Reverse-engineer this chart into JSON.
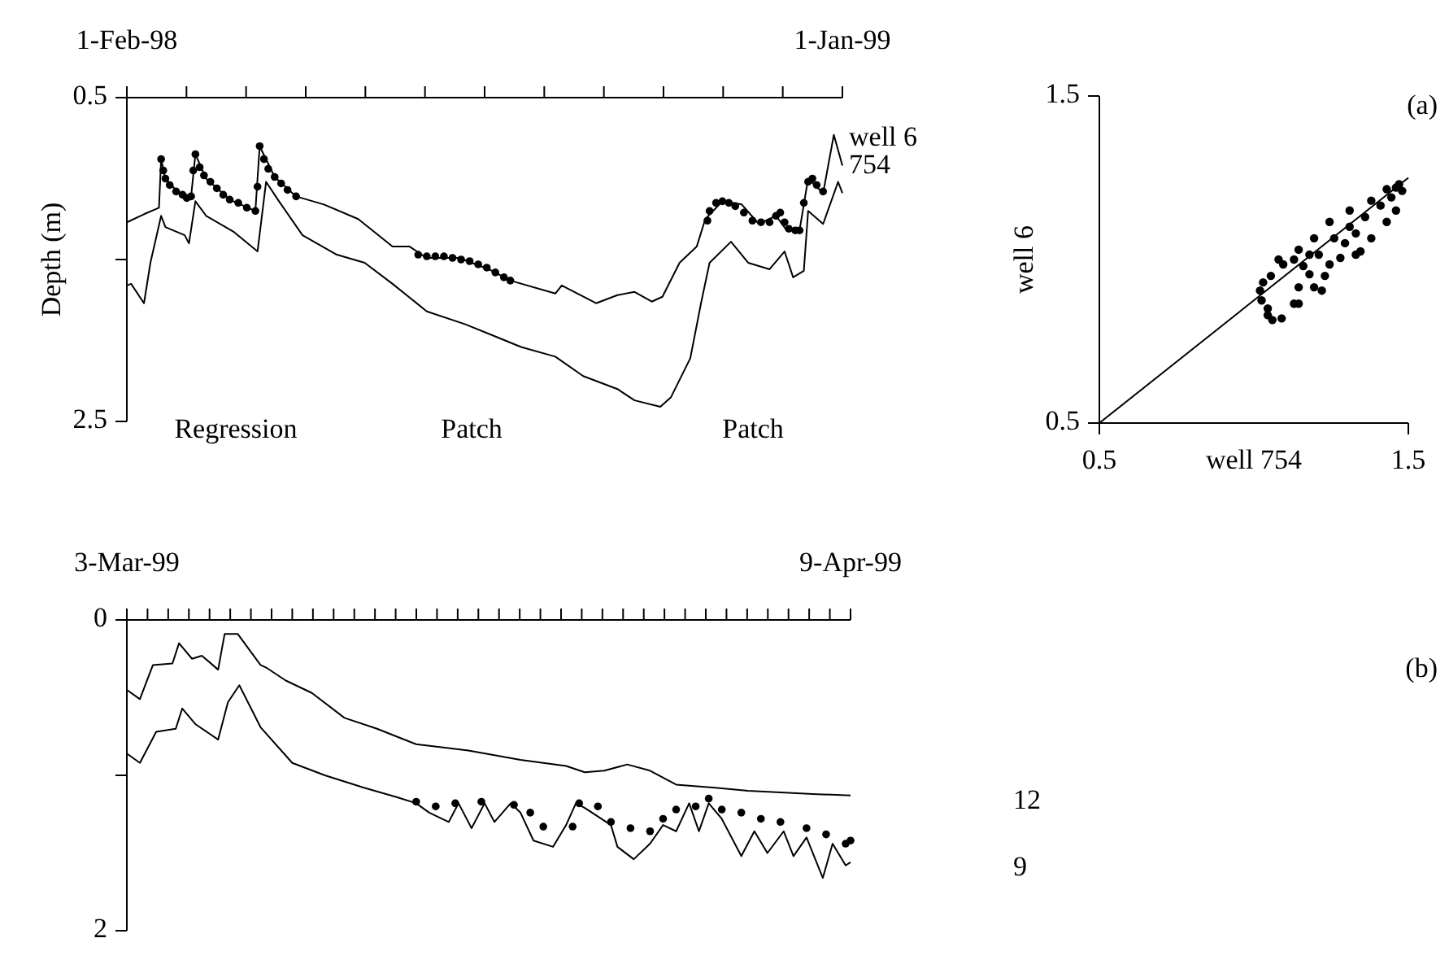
{
  "chart_data": [
    {
      "type": "line",
      "ylabel": "Depth (m)",
      "xlim": [
        "1998-02-01",
        "1999-01-01"
      ],
      "ylim": [
        2.5,
        0.5
      ],
      "xticks": [
        {
          "value": "1998-02-01",
          "label": "1-Feb-98"
        },
        {
          "value": "1998-02-28T20:00",
          "label": null
        },
        {
          "value": "1998-03-28T16:00",
          "label": null
        },
        {
          "value": "1998-04-25T12:00",
          "label": null
        },
        {
          "value": "1998-05-23T08:00",
          "label": null
        },
        {
          "value": "1998-06-20T04:00",
          "label": null
        },
        {
          "value": "1998-07-18",
          "label": null
        },
        {
          "value": "1998-08-14T20:00",
          "label": null
        },
        {
          "value": "1998-09-11T16:00",
          "label": null
        },
        {
          "value": "1998-10-09T12:00",
          "label": null
        },
        {
          "value": "1998-11-06T08:00",
          "label": null
        },
        {
          "value": "1998-12-04T04:00",
          "label": null
        },
        {
          "value": "1999-01-01",
          "label": "1-Jan-99"
        }
      ],
      "yticks": [
        0.5,
        {
          "value": 1.5,
          "label": null
        },
        2.5
      ],
      "annotations": [
        "Regression",
        "Patch",
        "Patch"
      ],
      "series": [
        {
          "name": "well 6",
          "color": "#000000",
          "x": [
            "1998-02-01",
            "1998-02-09",
            "1998-02-16",
            "1998-02-17",
            "1998-02-19",
            "1998-02-28",
            "1998-03-03",
            "1998-03-05",
            "1998-03-10",
            "1998-03-21",
            "1998-04-02",
            "1998-04-04",
            "1998-04-11",
            "1998-04-21",
            "1998-05-04",
            "1998-05-20",
            "1998-06-05",
            "1998-06-13",
            "1998-06-21",
            "1998-07-06",
            "1998-07-20",
            "1998-07-30",
            "1998-08-20",
            "1998-08-23",
            "1998-09-08",
            "1998-09-18",
            "1998-09-26",
            "1998-10-04",
            "1998-10-09",
            "1998-10-17",
            "1998-10-25",
            "1998-10-29",
            "1998-11-06",
            "1998-11-15",
            "1998-11-23",
            "1998-12-01",
            "1998-12-06",
            "1998-12-12",
            "1998-12-16",
            "1998-12-23",
            "1998-12-28",
            "1999-01-01"
          ],
          "values": [
            1.27,
            1.22,
            1.18,
            0.88,
            1.0,
            1.13,
            1.11,
            0.85,
            1.0,
            1.13,
            1.2,
            0.8,
            0.99,
            1.11,
            1.16,
            1.25,
            1.42,
            1.42,
            1.49,
            1.49,
            1.56,
            1.63,
            1.71,
            1.66,
            1.77,
            1.72,
            1.7,
            1.76,
            1.73,
            1.52,
            1.42,
            1.25,
            1.14,
            1.16,
            1.28,
            1.23,
            1.32,
            1.32,
            1.0,
            1.09,
            0.73,
            0.92
          ]
        },
        {
          "name": "754",
          "color": "#000000",
          "x": [
            "1998-02-01",
            "1998-02-03",
            "1998-02-09",
            "1998-02-12",
            "1998-02-17",
            "1998-02-19",
            "1998-02-28",
            "1998-03-02",
            "1998-03-05",
            "1998-03-10",
            "1998-03-23",
            "1998-04-03",
            "1998-04-07",
            "1998-04-13",
            "1998-04-24",
            "1998-05-10",
            "1998-05-23",
            "1998-06-05",
            "1998-06-21",
            "1998-07-09",
            "1998-07-22",
            "1998-08-04",
            "1998-08-20",
            "1998-09-02",
            "1998-09-18",
            "1998-09-26",
            "1998-10-08",
            "1998-10-13",
            "1998-10-22",
            "1998-10-27",
            "1998-10-31",
            "1998-11-10",
            "1998-11-18",
            "1998-11-28",
            "1998-12-05",
            "1998-12-09",
            "1998-12-14",
            "1998-12-16",
            "1998-12-23",
            "1998-12-30",
            "1999-01-01"
          ],
          "values": [
            1.66,
            1.65,
            1.77,
            1.52,
            1.23,
            1.3,
            1.35,
            1.4,
            1.14,
            1.23,
            1.33,
            1.45,
            1.02,
            1.14,
            1.35,
            1.47,
            1.52,
            1.65,
            1.82,
            1.9,
            1.97,
            2.04,
            2.1,
            2.22,
            2.3,
            2.37,
            2.41,
            2.35,
            2.11,
            1.77,
            1.52,
            1.39,
            1.52,
            1.56,
            1.45,
            1.61,
            1.57,
            1.2,
            1.28,
            1.02,
            1.09
          ]
        },
        {
          "type": "scatter",
          "marker": "circle",
          "color": "#000000",
          "x": [
            "1998-02-17",
            "1998-02-18",
            "1998-02-19",
            "1998-02-21",
            "1998-02-24",
            "1998-02-27",
            "1998-03-01",
            "1998-03-03",
            "1998-03-04",
            "1998-03-05",
            "1998-03-07",
            "1998-03-09",
            "1998-03-12",
            "1998-03-15",
            "1998-03-18",
            "1998-03-21",
            "1998-03-25",
            "1998-03-29",
            "1998-04-02",
            "1998-04-03",
            "1998-04-04",
            "1998-04-06",
            "1998-04-08",
            "1998-04-11",
            "1998-04-14",
            "1998-04-17",
            "1998-04-21",
            "1998-06-17",
            "1998-06-21",
            "1998-06-25",
            "1998-06-29",
            "1998-07-03",
            "1998-07-07",
            "1998-07-11",
            "1998-07-15",
            "1998-07-19",
            "1998-07-23",
            "1998-07-27",
            "1998-07-30",
            "1998-10-30",
            "1998-10-31",
            "1998-11-03",
            "1998-11-06",
            "1998-11-09",
            "1998-11-12",
            "1998-11-16",
            "1998-11-20",
            "1998-11-24",
            "1998-11-28",
            "1998-12-01",
            "1998-12-03",
            "1998-12-05",
            "1998-12-07",
            "1998-12-10",
            "1998-12-12",
            "1998-12-14",
            "1998-12-16",
            "1998-12-18",
            "1998-12-20",
            "1998-12-23"
          ],
          "values": [
            0.88,
            0.95,
            1.0,
            1.04,
            1.08,
            1.1,
            1.12,
            1.11,
            0.95,
            0.85,
            0.93,
            0.98,
            1.02,
            1.06,
            1.1,
            1.13,
            1.15,
            1.18,
            1.2,
            1.05,
            0.8,
            0.88,
            0.94,
            0.99,
            1.03,
            1.07,
            1.11,
            1.47,
            1.48,
            1.48,
            1.48,
            1.49,
            1.5,
            1.51,
            1.53,
            1.55,
            1.58,
            1.61,
            1.63,
            1.26,
            1.2,
            1.15,
            1.14,
            1.15,
            1.17,
            1.21,
            1.26,
            1.27,
            1.27,
            1.23,
            1.21,
            1.27,
            1.31,
            1.32,
            1.32,
            1.15,
            1.02,
            1.0,
            1.04,
            1.08
          ]
        }
      ]
    },
    {
      "type": "scatter",
      "xlabel": "well 754",
      "ylabel": "well 6",
      "xlim": [
        0.5,
        1.5
      ],
      "ylim": [
        0.5,
        1.5
      ],
      "xticks": [
        0.5,
        1.5
      ],
      "yticks": [
        0.5,
        1.5
      ],
      "annotations": [
        "(a)"
      ],
      "series": [
        {
          "type": "line",
          "color": "#000000",
          "x": [
            0.5,
            1.5
          ],
          "values": [
            0.5,
            1.25
          ]
        },
        {
          "marker": "circle",
          "color": "#000000",
          "x": [
            1.02,
            1.025,
            1.03,
            1.045,
            1.055,
            1.06,
            1.08,
            1.09,
            1.095,
            1.13,
            1.13,
            1.145,
            1.145,
            1.145,
            1.16,
            1.18,
            1.18,
            1.195,
            1.195,
            1.21,
            1.22,
            1.23,
            1.245,
            1.245,
            1.26,
            1.28,
            1.295,
            1.31,
            1.31,
            1.33,
            1.33,
            1.345,
            1.36,
            1.38,
            1.38,
            1.41,
            1.43,
            1.43,
            1.445,
            1.46,
            1.46,
            1.47,
            1.48,
            1.045
          ],
          "values": [
            0.905,
            0.875,
            0.93,
            0.83,
            0.95,
            0.815,
            1.0,
            0.82,
            0.985,
            0.865,
            1.0,
            0.915,
            1.03,
            0.865,
            0.98,
            1.015,
            0.955,
            1.065,
            0.915,
            1.015,
            0.905,
            0.95,
            1.115,
            0.985,
            1.065,
            1.005,
            1.05,
            1.15,
            1.1,
            1.08,
            1.015,
            1.025,
            1.13,
            1.18,
            1.065,
            1.165,
            1.215,
            1.115,
            1.19,
            1.22,
            1.15,
            1.23,
            1.21,
            0.85
          ]
        }
      ]
    },
    {
      "type": "line",
      "xlim": [
        "1999-03-03",
        "1999-04-09"
      ],
      "ylim": [
        2,
        0
      ],
      "xticks": [
        {
          "value": "1999-03-03",
          "label": "3-Mar-99"
        },
        {
          "value": "1999-03-04T01:22",
          "label": null
        },
        {
          "value": "1999-03-05T02:45",
          "label": null
        },
        {
          "value": "1999-03-06T04:07",
          "label": null
        },
        {
          "value": "1999-03-07T05:29",
          "label": null
        },
        {
          "value": "1999-03-08T06:51",
          "label": null
        },
        {
          "value": "1999-03-09T08:14",
          "label": null
        },
        {
          "value": "1999-03-10T09:36",
          "label": null
        },
        {
          "value": "1999-03-11T10:58",
          "label": null
        },
        {
          "value": "1999-03-12T12:21",
          "label": null
        },
        {
          "value": "1999-03-13T13:43",
          "label": null
        },
        {
          "value": "1999-03-14T15:05",
          "label": null
        },
        {
          "value": "1999-03-15T16:27",
          "label": null
        },
        {
          "value": "1999-03-16T17:50",
          "label": null
        },
        {
          "value": "1999-03-17T19:12",
          "label": null
        },
        {
          "value": "1999-03-18T20:34",
          "label": null
        },
        {
          "value": "1999-03-19T21:57",
          "label": null
        },
        {
          "value": "1999-03-20T23:19",
          "label": null
        },
        {
          "value": "1999-03-22T00:41",
          "label": null
        },
        {
          "value": "1999-03-23T02:04",
          "label": null
        },
        {
          "value": "1999-03-24T03:26",
          "label": null
        },
        {
          "value": "1999-03-25T04:48",
          "label": null
        },
        {
          "value": "1999-03-26T06:10",
          "label": null
        },
        {
          "value": "1999-03-27T07:33",
          "label": null
        },
        {
          "value": "1999-03-28T08:55",
          "label": null
        },
        {
          "value": "1999-03-29T10:17",
          "label": null
        },
        {
          "value": "1999-03-30T11:39",
          "label": null
        },
        {
          "value": "1999-03-31T13:02",
          "label": null
        },
        {
          "value": "1999-04-01T14:24",
          "label": null
        },
        {
          "value": "1999-04-02T15:46",
          "label": null
        },
        {
          "value": "1999-04-03T17:09",
          "label": null
        },
        {
          "value": "1999-04-04T18:31",
          "label": null
        },
        {
          "value": "1999-04-05T19:53",
          "label": null
        },
        {
          "value": "1999-04-06T21:15",
          "label": null
        },
        {
          "value": "1999-04-07T22:38",
          "label": null
        },
        {
          "value": "1999-04-09",
          "label": "9-Apr-99"
        }
      ],
      "yticks": [
        0,
        {
          "value": 1,
          "label": null
        },
        2
      ],
      "annotations": [
        "(b)"
      ],
      "series": [
        {
          "name": "12",
          "color": "#000000",
          "x": [
            "1999-03-03T00:00",
            "1999-03-03T16:00",
            "1999-03-04T08:00",
            "1999-03-05T08:00",
            "1999-03-05T16:00",
            "1999-03-06T08:00",
            "1999-03-06T20:00",
            "1999-03-07T16:00",
            "1999-03-08T00:00",
            "1999-03-08T16:00",
            "1999-03-09T20:00",
            "1999-03-10T04:00",
            "1999-03-11T03:00",
            "1999-03-12T11:00",
            "1999-03-14T03:00",
            "1999-03-15T19:00",
            "1999-03-17T19:00",
            "1999-03-20T11:00",
            "1999-03-23T03:00",
            "1999-03-25T11:00",
            "1999-03-26T10:00",
            "1999-03-27T10:00",
            "1999-03-28T14:00",
            "1999-03-29T18:00",
            "1999-03-31T02:00",
            "1999-04-02T02:00",
            "1999-04-03T18:00",
            "1999-04-07T02:00",
            "1999-04-09T00:00"
          ],
          "values": [
            0.45,
            0.51,
            0.29,
            0.28,
            0.15,
            0.25,
            0.23,
            0.32,
            0.09,
            0.09,
            0.29,
            0.31,
            0.39,
            0.47,
            0.63,
            0.7,
            0.8,
            0.84,
            0.9,
            0.94,
            0.98,
            0.97,
            0.93,
            0.97,
            1.06,
            1.08,
            1.1,
            1.12,
            1.13
          ]
        },
        {
          "name": "9",
          "color": "#000000",
          "x": [
            "1999-03-03T00:00",
            "1999-03-03T16:00",
            "1999-03-04T12:00",
            "1999-03-05T12:00",
            "1999-03-05T20:00",
            "1999-03-06T12:00",
            "1999-03-07T16:00",
            "1999-03-08T04:00",
            "1999-03-08T18:00",
            "1999-03-09T20:00",
            "1999-03-11T11:00",
            "1999-03-13T03:00",
            "1999-03-15T03:00",
            "1999-03-16T19:00",
            "1999-03-17T19:00",
            "1999-03-18T11:00",
            "1999-03-19T11:00",
            "1999-03-19T23:00",
            "1999-03-20T15:00",
            "1999-03-21T07:00",
            "1999-03-21T19:00",
            "1999-03-22T15:00",
            "1999-03-23T03:00",
            "1999-03-23T19:00",
            "1999-03-24T19:00",
            "1999-03-25T11:00",
            "1999-03-25T23:00",
            "1999-03-26T10:00",
            "1999-03-27T18:00",
            "1999-03-28T02:00",
            "1999-03-28T22:00",
            "1999-03-29T18:00",
            "1999-03-30T10:00",
            "1999-03-31T02:00",
            "1999-03-31T18:00",
            "1999-04-01T06:00",
            "1999-04-01T18:00",
            "1999-04-02T10:00",
            "1999-04-03T10:00",
            "1999-04-04T02:00",
            "1999-04-04T18:00",
            "1999-04-05T14:00",
            "1999-04-06T02:00",
            "1999-04-06T18:00",
            "1999-04-07T14:00",
            "1999-04-08T02:00",
            "1999-04-08T18:00",
            "1999-04-09T00:00"
          ],
          "values": [
            0.86,
            0.92,
            0.72,
            0.7,
            0.57,
            0.67,
            0.77,
            0.53,
            0.42,
            0.69,
            0.92,
            1.0,
            1.08,
            1.14,
            1.18,
            1.24,
            1.3,
            1.18,
            1.34,
            1.18,
            1.3,
            1.18,
            1.24,
            1.42,
            1.46,
            1.32,
            1.18,
            1.21,
            1.32,
            1.46,
            1.54,
            1.44,
            1.32,
            1.36,
            1.18,
            1.36,
            1.18,
            1.28,
            1.52,
            1.36,
            1.5,
            1.36,
            1.52,
            1.4,
            1.66,
            1.44,
            1.58,
            1.56
          ]
        },
        {
          "type": "scatter",
          "marker": "circle",
          "color": "#000000",
          "x": [
            "1999-03-17T19:00",
            "1999-03-18T19:00",
            "1999-03-19T19:00",
            "1999-03-21T03:00",
            "1999-03-22T19:00",
            "1999-03-23T15:00",
            "1999-03-24T07:00",
            "1999-03-25T19:00",
            "1999-03-26T03:00",
            "1999-03-27T02:00",
            "1999-03-27T18:00",
            "1999-03-28T18:00",
            "1999-03-29T18:00",
            "1999-03-30T10:00",
            "1999-03-31T02:00",
            "1999-04-01T02:00",
            "1999-04-01T18:00",
            "1999-04-02T10:00",
            "1999-04-03T10:00",
            "1999-04-04T10:00",
            "1999-04-05T10:00",
            "1999-04-06T18:00",
            "1999-04-07T18:00",
            "1999-04-08T18:00",
            "1999-04-09T00:00"
          ],
          "values": [
            1.17,
            1.2,
            1.18,
            1.17,
            1.19,
            1.24,
            1.33,
            1.33,
            1.18,
            1.2,
            1.3,
            1.34,
            1.36,
            1.28,
            1.22,
            1.2,
            1.15,
            1.22,
            1.24,
            1.28,
            1.3,
            1.34,
            1.38,
            1.44,
            1.42
          ]
        }
      ]
    }
  ]
}
